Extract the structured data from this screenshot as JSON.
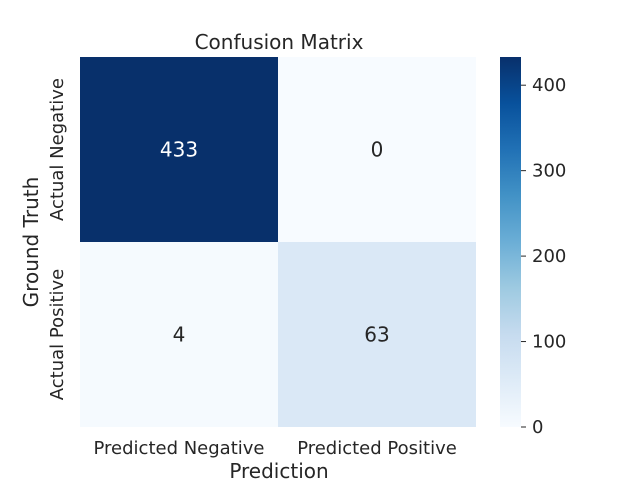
{
  "chart_data": {
    "type": "heatmap",
    "title": "Confusion Matrix",
    "xlabel": "Prediction",
    "ylabel": "Ground Truth",
    "x_categories": [
      "Predicted Negative",
      "Predicted Positive"
    ],
    "y_categories": [
      "Actual Negative",
      "Actual Positive"
    ],
    "values": [
      [
        433,
        0
      ],
      [
        4,
        63
      ]
    ],
    "colormap": "Blues",
    "colorbar": {
      "range": [
        0,
        433
      ],
      "ticks": [
        0,
        100,
        200,
        300,
        400
      ]
    },
    "grid": false,
    "legend": "colorbar-right"
  }
}
